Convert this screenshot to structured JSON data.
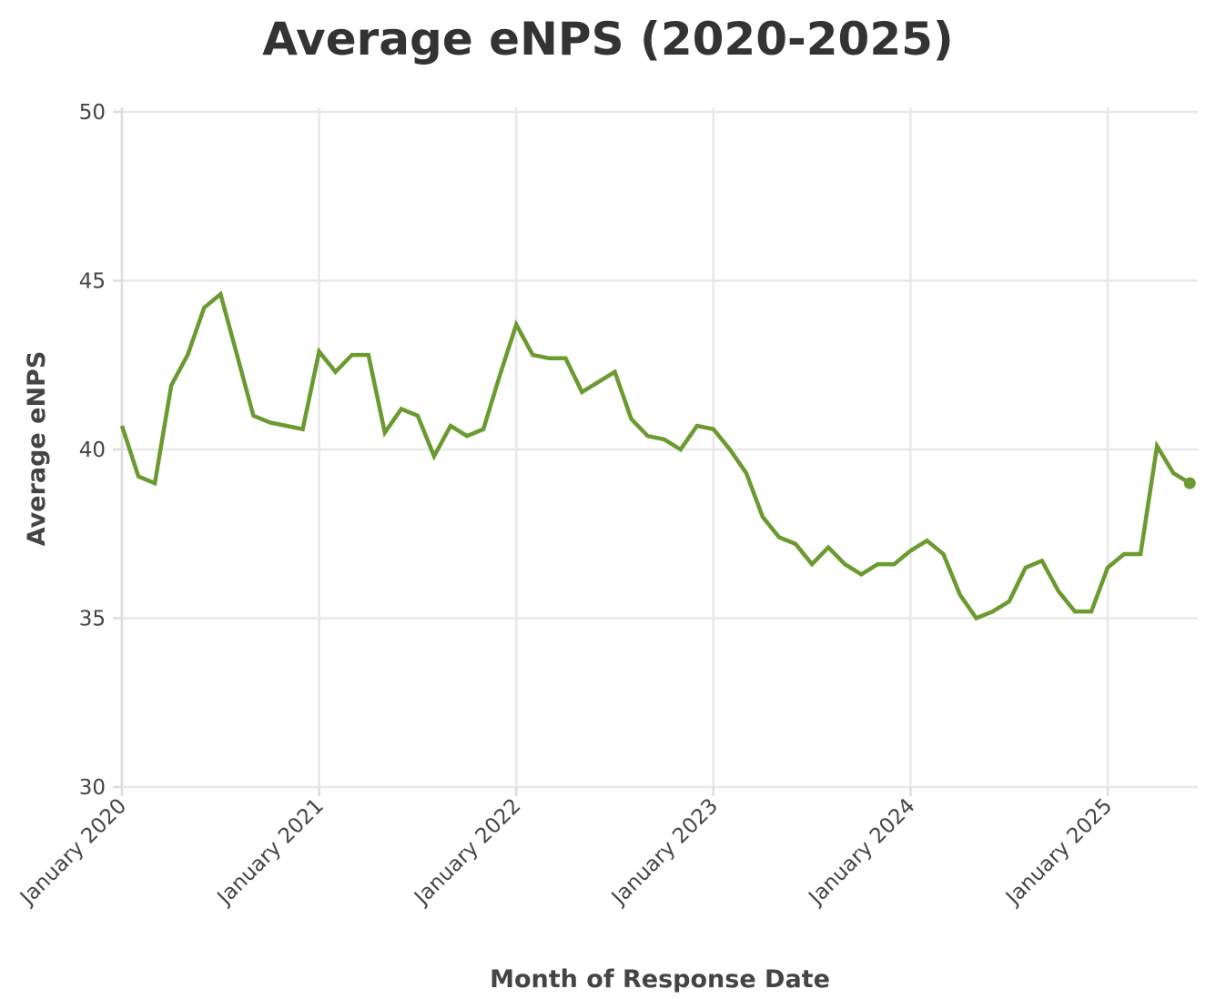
{
  "chart_data": {
    "type": "line",
    "title": "Average eNPS (2020-2025)",
    "xlabel": "Month of Response Date",
    "ylabel": "Average eNPS",
    "ylim": [
      30,
      50
    ],
    "yticks": [
      30,
      35,
      40,
      45,
      50
    ],
    "xticks": [
      "January 2020",
      "January 2021",
      "January 2022",
      "January 2023",
      "January 2024",
      "January 2025"
    ],
    "grid": true,
    "color": "#6a9a30",
    "series": [
      {
        "x": [
          "2020-01",
          "2020-02",
          "2020-03",
          "2020-04",
          "2020-05",
          "2020-06",
          "2020-07",
          "2020-08",
          "2020-09",
          "2020-10",
          "2020-11",
          "2020-12",
          "2021-01",
          "2021-02",
          "2021-03",
          "2021-04",
          "2021-05",
          "2021-06",
          "2021-07",
          "2021-08",
          "2021-09",
          "2021-10",
          "2021-11",
          "2021-12",
          "2022-01",
          "2022-02",
          "2022-03",
          "2022-04",
          "2022-05",
          "2022-06",
          "2022-07",
          "2022-08",
          "2022-09",
          "2022-10",
          "2022-11",
          "2022-12",
          "2023-01",
          "2023-02",
          "2023-03",
          "2023-04",
          "2023-05",
          "2023-06",
          "2023-07",
          "2023-08",
          "2023-09",
          "2023-10",
          "2023-11",
          "2023-12",
          "2024-01",
          "2024-02",
          "2024-03",
          "2024-04",
          "2024-05",
          "2024-06",
          "2024-07",
          "2024-08",
          "2024-09",
          "2024-10",
          "2024-11",
          "2024-12",
          "2025-01",
          "2025-02",
          "2025-03",
          "2025-04",
          "2025-05",
          "2025-06"
        ],
        "values": [
          40.7,
          39.2,
          39.0,
          41.9,
          42.8,
          44.2,
          44.6,
          42.8,
          41.0,
          40.8,
          40.7,
          40.6,
          42.9,
          42.3,
          42.8,
          42.8,
          40.5,
          41.2,
          41.0,
          39.8,
          40.7,
          40.4,
          40.6,
          42.2,
          43.7,
          42.8,
          42.7,
          42.7,
          41.7,
          42.0,
          42.3,
          40.9,
          40.4,
          40.3,
          40.0,
          40.7,
          40.6,
          40.0,
          39.3,
          38.0,
          37.4,
          37.2,
          36.6,
          37.1,
          36.6,
          36.3,
          36.6,
          36.6,
          37.0,
          37.3,
          36.9,
          35.7,
          35.0,
          35.2,
          35.5,
          36.5,
          36.7,
          35.8,
          35.2,
          35.2,
          36.5,
          36.9,
          36.9,
          40.1,
          39.3,
          39.0
        ]
      }
    ]
  }
}
